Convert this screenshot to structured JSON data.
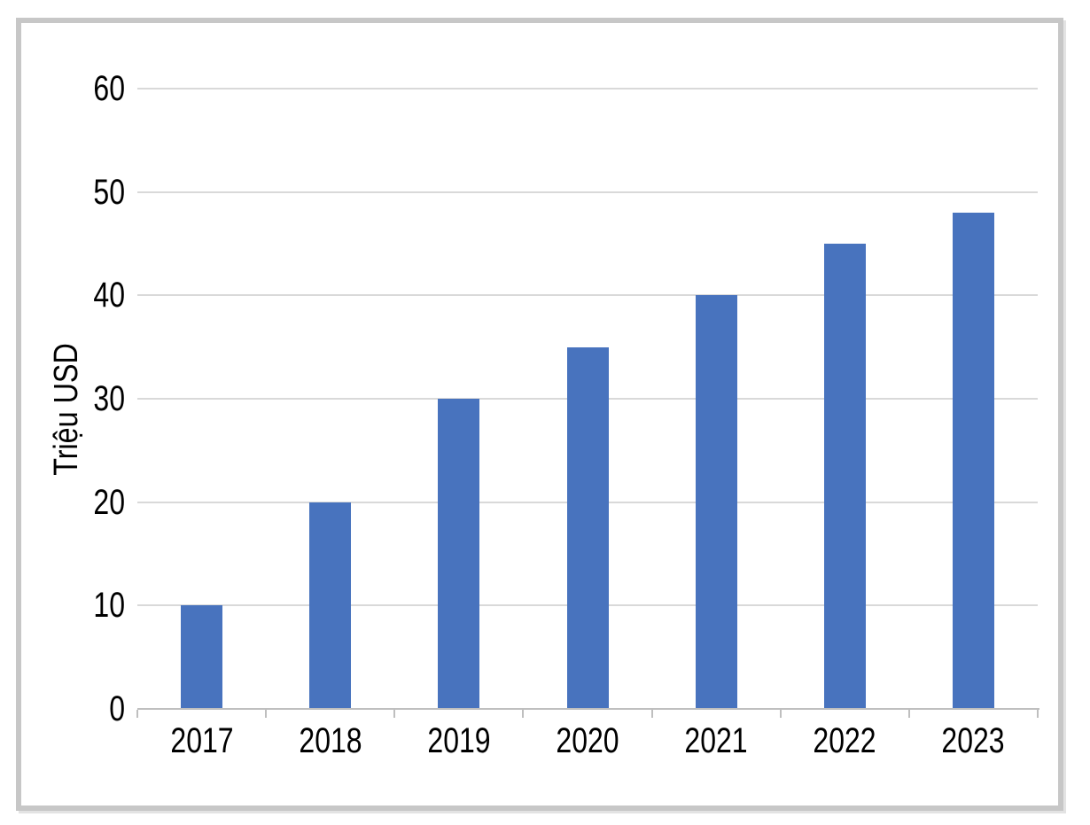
{
  "chart_data": {
    "type": "bar",
    "title": "",
    "categories": [
      "2017",
      "2018",
      "2019",
      "2020",
      "2021",
      "2022",
      "2023"
    ],
    "values": [
      10,
      20,
      30,
      35,
      40,
      45,
      48
    ],
    "xlabel": "",
    "ylabel": "Triệu USD",
    "ylim": [
      0,
      60
    ],
    "ytick_step": 10,
    "yticks": [
      0,
      10,
      20,
      30,
      40,
      50,
      60
    ],
    "grid": true,
    "legend": "none",
    "colors": {
      "bar": "#4873BE",
      "gridline": "#D9D9D9",
      "axis": "#BFBFBF",
      "text": "#000000",
      "frame_border": "#C7C7C7",
      "background": "#FFFFFF"
    }
  }
}
